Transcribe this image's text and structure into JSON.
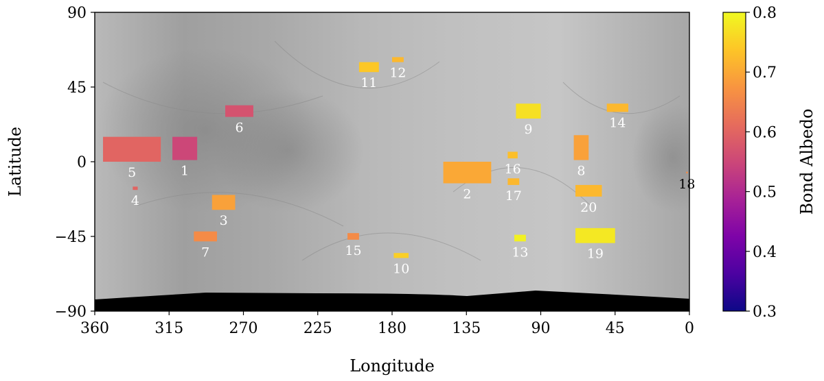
{
  "chart_data": {
    "type": "heatmap",
    "title": "",
    "xlabel": "Longitude",
    "ylabel": "Latitude",
    "xlim": [
      360,
      0
    ],
    "ylim": [
      -90,
      90
    ],
    "x_ticks": [
      360,
      315,
      270,
      225,
      180,
      135,
      90,
      45,
      0
    ],
    "x_tick_labels": [
      "360",
      "315",
      "270",
      "225",
      "180",
      "135",
      "90",
      "45",
      "0"
    ],
    "y_ticks": [
      90,
      45,
      0,
      -45,
      -90
    ],
    "y_tick_labels": [
      "90",
      "45",
      "0",
      "−45",
      "−90"
    ],
    "background": "grayscale surface mosaic map",
    "colorbar": {
      "label": "Bond Albedo",
      "colormap": "plasma",
      "range": [
        0.3,
        0.8
      ],
      "ticks": [
        0.3,
        0.4,
        0.5,
        0.6,
        0.7,
        0.8
      ],
      "tick_labels": [
        "0.3",
        "0.4",
        "0.5",
        "0.6",
        "0.7",
        "0.8"
      ]
    },
    "regions": [
      {
        "id": "1",
        "lon": [
          298,
          313
        ],
        "lat": [
          1,
          15
        ],
        "albedo": 0.55
      },
      {
        "id": "2",
        "lon": [
          120,
          149
        ],
        "lat": [
          -13,
          0
        ],
        "albedo": 0.7
      },
      {
        "id": "3",
        "lon": [
          275,
          289
        ],
        "lat": [
          -29,
          -20
        ],
        "albedo": 0.69
      },
      {
        "id": "4",
        "lon": [
          334,
          337
        ],
        "lat": [
          -17,
          -15
        ],
        "albedo": 0.6
      },
      {
        "id": "5",
        "lon": [
          320,
          355
        ],
        "lat": [
          0,
          15
        ],
        "albedo": 0.6
      },
      {
        "id": "6",
        "lon": [
          264,
          281
        ],
        "lat": [
          27,
          34
        ],
        "albedo": 0.57
      },
      {
        "id": "7",
        "lon": [
          286,
          300
        ],
        "lat": [
          -48,
          -42
        ],
        "albedo": 0.66
      },
      {
        "id": "8",
        "lon": [
          61,
          70
        ],
        "lat": [
          1,
          16
        ],
        "albedo": 0.69
      },
      {
        "id": "9",
        "lon": [
          90,
          105
        ],
        "lat": [
          26,
          35
        ],
        "albedo": 0.77
      },
      {
        "id": "10",
        "lon": [
          170,
          179
        ],
        "lat": [
          -58,
          -55
        ],
        "albedo": 0.75
      },
      {
        "id": "11",
        "lon": [
          188,
          200
        ],
        "lat": [
          54,
          60
        ],
        "albedo": 0.74
      },
      {
        "id": "12",
        "lon": [
          173,
          180
        ],
        "lat": [
          60,
          63
        ],
        "albedo": 0.72
      },
      {
        "id": "13",
        "lon": [
          99,
          106
        ],
        "lat": [
          -48,
          -44
        ],
        "albedo": 0.79
      },
      {
        "id": "14",
        "lon": [
          37,
          50
        ],
        "lat": [
          30,
          35
        ],
        "albedo": 0.72
      },
      {
        "id": "15",
        "lon": [
          200,
          207
        ],
        "lat": [
          -47,
          -43
        ],
        "albedo": 0.66
      },
      {
        "id": "16",
        "lon": [
          104,
          110
        ],
        "lat": [
          2,
          6
        ],
        "albedo": 0.73
      },
      {
        "id": "17",
        "lon": [
          103,
          110
        ],
        "lat": [
          -14,
          -10
        ],
        "albedo": 0.72
      },
      {
        "id": "18",
        "lon": [
          1,
          2
        ],
        "lat": [
          -7,
          -6
        ],
        "albedo": 0.66
      },
      {
        "id": "19",
        "lon": [
          45,
          69
        ],
        "lat": [
          -49,
          -40
        ],
        "albedo": 0.78
      },
      {
        "id": "20",
        "lon": [
          53,
          69
        ],
        "lat": [
          -21,
          -14
        ],
        "albedo": 0.72
      }
    ]
  }
}
